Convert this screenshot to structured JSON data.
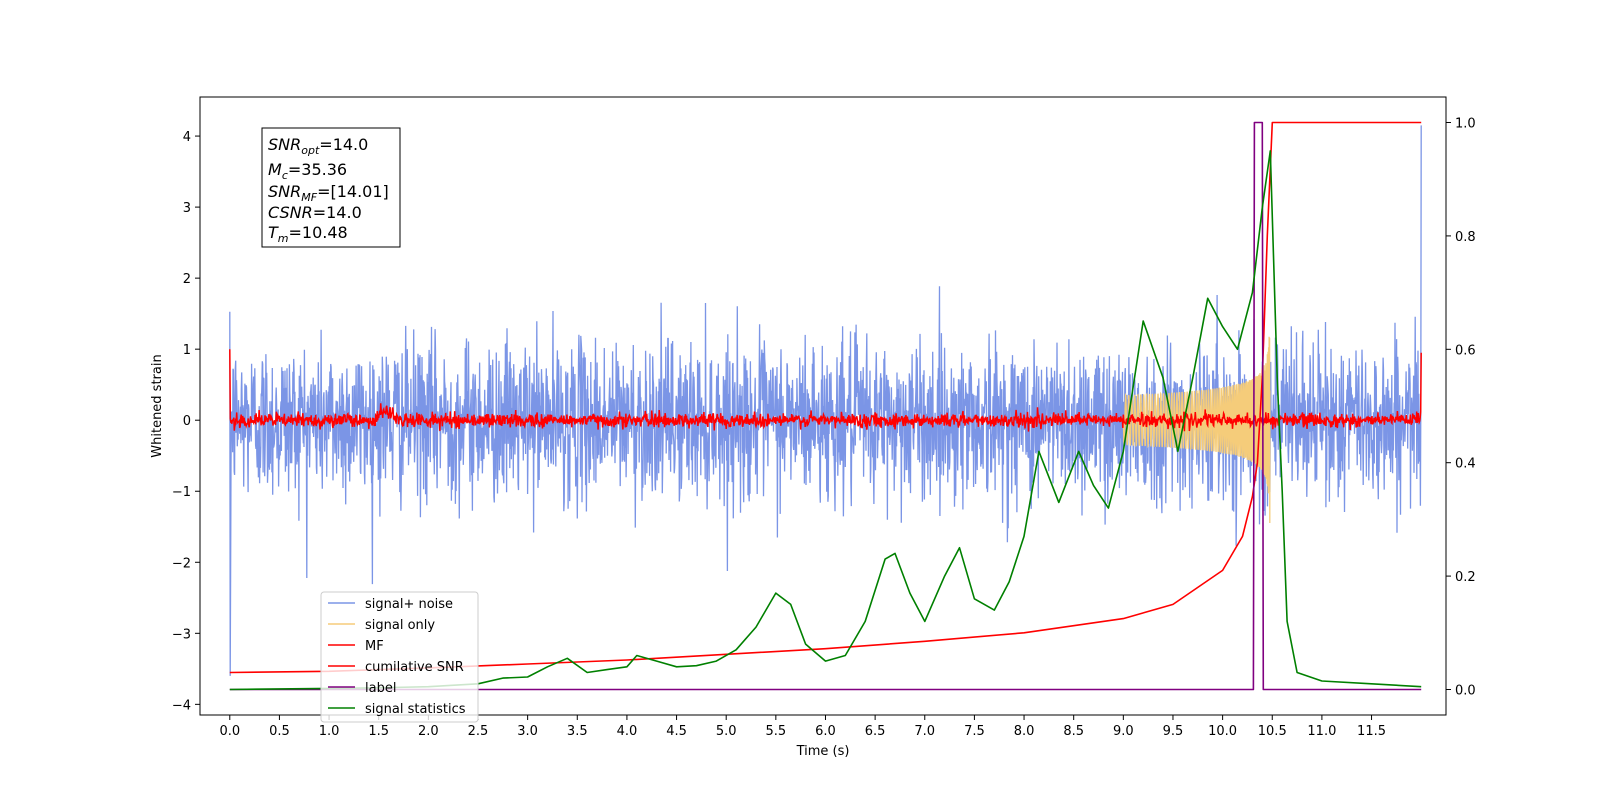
{
  "chart_data": {
    "type": "line",
    "xlabel": "Time (s)",
    "ylabel": "Whitened strain",
    "x_ticks": [
      "0.0",
      "0.5",
      "1.0",
      "1.5",
      "2.0",
      "2.5",
      "3.0",
      "3.5",
      "4.0",
      "4.5",
      "5.0",
      "5.5",
      "6.0",
      "6.5",
      "7.0",
      "7.5",
      "8.0",
      "8.5",
      "9.0",
      "9.5",
      "10.0",
      "10.5",
      "11.0",
      "11.5"
    ],
    "y_left_ticks": [
      "−4",
      "−3",
      "−2",
      "−1",
      "0",
      "1",
      "2",
      "3",
      "4"
    ],
    "y_right_ticks": [
      "0.0",
      "0.2",
      "0.4",
      "0.6",
      "0.8",
      "1.0"
    ],
    "xlim": [
      -0.3,
      12.25
    ],
    "ylim_left": [
      -4.15,
      4.55
    ],
    "ylim_right": [
      -0.045,
      1.045
    ],
    "annotation": {
      "snr_opt": {
        "sym": "SNR",
        "sub": "opt",
        "val": "=14.0"
      },
      "mc": {
        "sym": "M",
        "sub": "c",
        "val": "=35.36"
      },
      "snr_mf": {
        "sym": "SNR",
        "sub": "MF",
        "val": "=[14.01]"
      },
      "csnr": {
        "sym": "CSNR",
        "sub": "",
        "val": "=14.0"
      },
      "tm": {
        "sym": "T",
        "sub": "m",
        "val": "=10.48"
      }
    },
    "legend": {
      "placement": "lower-left",
      "entries": [
        "signal+ noise",
        "signal only",
        "MF",
        "cumilative SNR",
        "label",
        "signal statistics"
      ]
    },
    "colors": {
      "signal_noise": "#7b95e6",
      "signal_only": "#f5cc7a",
      "mf": "#ff0000",
      "cumulative_snr": "#ff0000",
      "label": "#800080",
      "signal_statistics": "#008000"
    },
    "series": [
      {
        "name": "signal+ noise",
        "axis": "left",
        "kind": "noise",
        "x_range": [
          0.0,
          12.0
        ],
        "std": 0.55
      },
      {
        "name": "signal only",
        "axis": "left",
        "kind": "chirp",
        "merger_time": 10.48
      },
      {
        "name": "MF",
        "axis": "left",
        "kind": "noise",
        "x_range": [
          0.0,
          12.0
        ],
        "std": 0.05
      },
      {
        "name": "cumilative SNR",
        "axis": "right",
        "x": [
          0.0,
          1,
          2,
          3,
          4,
          5,
          6,
          7,
          8,
          9,
          9.5,
          10.0,
          10.2,
          10.3,
          10.35,
          10.4,
          10.45,
          10.5,
          11.0,
          11.5,
          12.0
        ],
        "y": [
          0.03,
          0.032,
          0.038,
          0.045,
          0.052,
          0.062,
          0.072,
          0.085,
          0.1,
          0.125,
          0.15,
          0.21,
          0.27,
          0.34,
          0.4,
          0.55,
          0.8,
          1.0,
          1.0,
          1.0,
          1.0
        ]
      },
      {
        "name": "label",
        "axis": "right",
        "x": [
          0.0,
          10.31,
          10.32,
          10.4,
          10.41,
          10.48,
          10.49,
          12.0
        ],
        "y": [
          0.0,
          0.0,
          1.0,
          1.0,
          0.0,
          0.0,
          0.0,
          0.0
        ]
      },
      {
        "name": "signal statistics",
        "axis": "right",
        "x": [
          0.0,
          0.5,
          1.0,
          1.5,
          2.0,
          2.5,
          2.75,
          3.0,
          3.2,
          3.4,
          3.6,
          3.8,
          4.0,
          4.1,
          4.3,
          4.5,
          4.7,
          4.9,
          5.1,
          5.3,
          5.5,
          5.65,
          5.8,
          6.0,
          6.2,
          6.4,
          6.6,
          6.7,
          6.85,
          7.0,
          7.2,
          7.35,
          7.5,
          7.7,
          7.85,
          8.0,
          8.15,
          8.35,
          8.55,
          8.7,
          8.85,
          9.0,
          9.2,
          9.4,
          9.55,
          9.7,
          9.85,
          10.0,
          10.15,
          10.3,
          10.4,
          10.48,
          10.55,
          10.6,
          10.65,
          10.75,
          11.0,
          11.5,
          12.0
        ],
        "y": [
          0.0,
          0.001,
          0.002,
          0.003,
          0.005,
          0.01,
          0.02,
          0.022,
          0.04,
          0.055,
          0.03,
          0.035,
          0.04,
          0.06,
          0.05,
          0.04,
          0.042,
          0.05,
          0.07,
          0.11,
          0.17,
          0.15,
          0.08,
          0.05,
          0.06,
          0.12,
          0.23,
          0.24,
          0.17,
          0.12,
          0.2,
          0.25,
          0.16,
          0.14,
          0.19,
          0.27,
          0.42,
          0.33,
          0.42,
          0.36,
          0.32,
          0.42,
          0.65,
          0.55,
          0.42,
          0.55,
          0.69,
          0.64,
          0.6,
          0.7,
          0.85,
          0.95,
          0.55,
          0.35,
          0.12,
          0.03,
          0.015,
          0.01,
          0.005
        ]
      }
    ]
  }
}
